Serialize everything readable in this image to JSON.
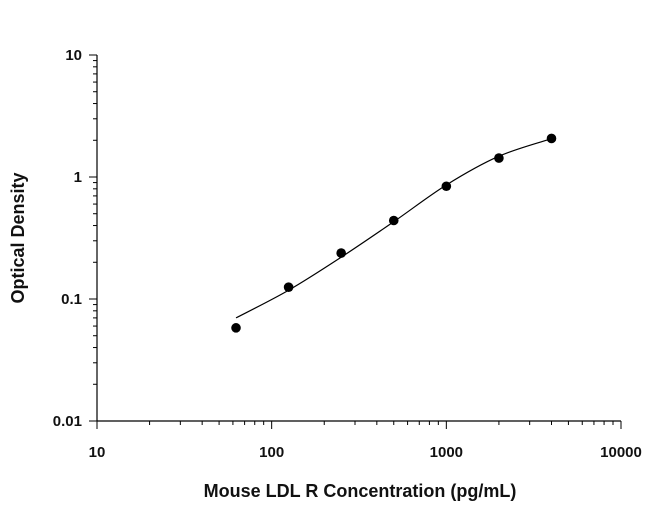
{
  "chart_data": {
    "type": "scatter",
    "xlabel": "Mouse LDL R Concentration (pg/mL)",
    "ylabel": "Optical Density",
    "x_scale": "log",
    "y_scale": "log",
    "xlim": [
      10,
      10000
    ],
    "ylim": [
      0.01,
      10
    ],
    "x_tick_labels": [
      "10",
      "100",
      "1000",
      "10000"
    ],
    "y_tick_labels": [
      "0.01",
      "0.1",
      "1",
      "10"
    ],
    "grid": false,
    "legend": false,
    "marker_color": "#000000",
    "line_color": "#000000",
    "series": [
      {
        "x": [
          62.5,
          125,
          250,
          500,
          1000,
          2000,
          4000
        ],
        "y": [
          0.058,
          0.125,
          0.238,
          0.44,
          0.84,
          1.43,
          2.07
        ]
      }
    ],
    "fit_curve": {
      "x": [
        62.5,
        125,
        250,
        500,
        1000,
        2000,
        4000
      ],
      "y": [
        0.07,
        0.118,
        0.22,
        0.43,
        0.86,
        1.48,
        2.06
      ]
    }
  }
}
